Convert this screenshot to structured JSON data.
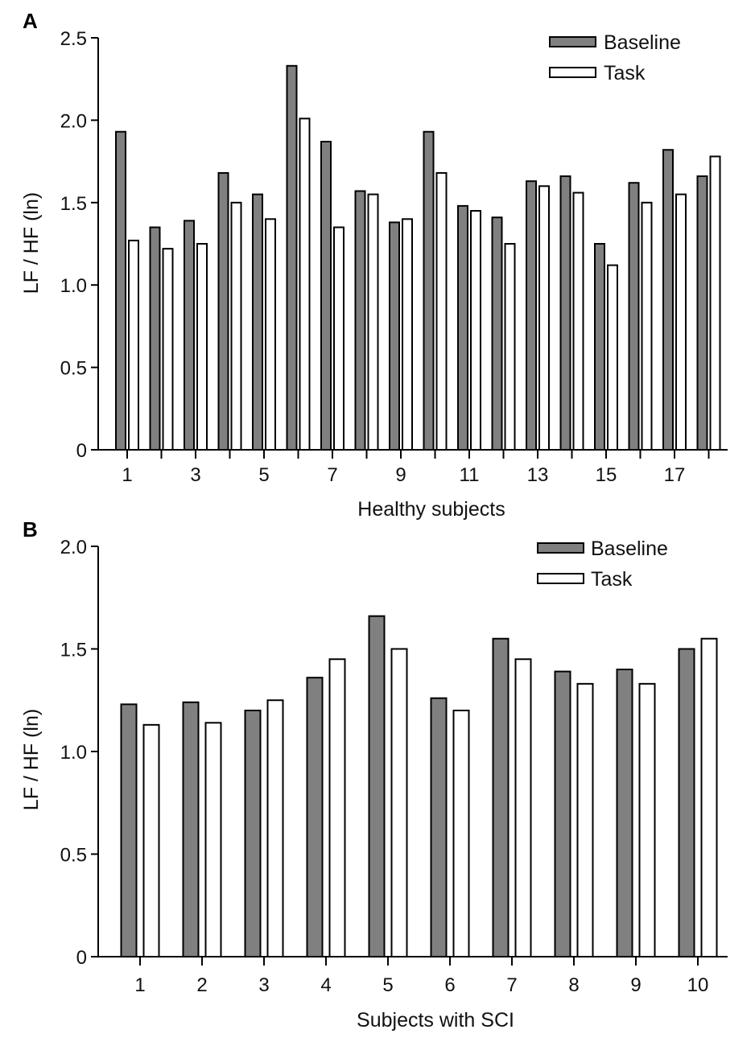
{
  "colors": {
    "baseline": "#808080",
    "task": "#ffffff"
  },
  "chart_data": [
    {
      "panel_label": "A",
      "type": "bar",
      "xlabel": "Healthy subjects",
      "ylabel": "LF / HF (ln)",
      "ylim": [
        0,
        2.5
      ],
      "yticks": [
        0,
        0.5,
        1.0,
        1.5,
        2.0,
        2.5
      ],
      "ytick_labels": [
        "0",
        "0.5",
        "1.0",
        "1.5",
        "2.0",
        "2.5"
      ],
      "categories": [
        "1",
        "2",
        "3",
        "4",
        "5",
        "6",
        "7",
        "8",
        "9",
        "10",
        "11",
        "12",
        "13",
        "14",
        "15",
        "16",
        "17",
        "18"
      ],
      "xtick_labels": [
        "1",
        "",
        "3",
        "",
        "5",
        "",
        "7",
        "",
        "9",
        "",
        "11",
        "",
        "13",
        "",
        "15",
        "",
        "17",
        ""
      ],
      "legend": [
        "Baseline",
        "Task"
      ],
      "legend_position": "top-right",
      "series": [
        {
          "name": "Baseline",
          "values": [
            1.93,
            1.35,
            1.39,
            1.68,
            1.55,
            2.33,
            1.87,
            1.57,
            1.38,
            1.93,
            1.48,
            1.41,
            1.63,
            1.66,
            1.25,
            1.62,
            1.82,
            1.66
          ]
        },
        {
          "name": "Task",
          "values": [
            1.27,
            1.22,
            1.25,
            1.5,
            1.4,
            2.01,
            1.35,
            1.55,
            1.4,
            1.68,
            1.45,
            1.25,
            1.6,
            1.56,
            1.12,
            1.5,
            1.55,
            1.78
          ]
        }
      ]
    },
    {
      "panel_label": "B",
      "type": "bar",
      "xlabel": "Subjects with SCI",
      "ylabel": "LF / HF (ln)",
      "ylim": [
        0,
        2.0
      ],
      "yticks": [
        0,
        0.5,
        1.0,
        1.5,
        2.0
      ],
      "ytick_labels": [
        "0",
        "0.5",
        "1.0",
        "1.5",
        "2.0"
      ],
      "categories": [
        "1",
        "2",
        "3",
        "4",
        "5",
        "6",
        "7",
        "8",
        "9",
        "10"
      ],
      "xtick_labels": [
        "1",
        "2",
        "3",
        "4",
        "5",
        "6",
        "7",
        "8",
        "9",
        "10"
      ],
      "legend": [
        "Baseline",
        "Task"
      ],
      "legend_position": "top-right",
      "series": [
        {
          "name": "Baseline",
          "values": [
            1.23,
            1.24,
            1.2,
            1.36,
            1.66,
            1.26,
            1.55,
            1.39,
            1.4,
            1.5
          ]
        },
        {
          "name": "Task",
          "values": [
            1.13,
            1.14,
            1.25,
            1.45,
            1.5,
            1.2,
            1.45,
            1.33,
            1.33,
            1.55
          ]
        }
      ]
    }
  ]
}
